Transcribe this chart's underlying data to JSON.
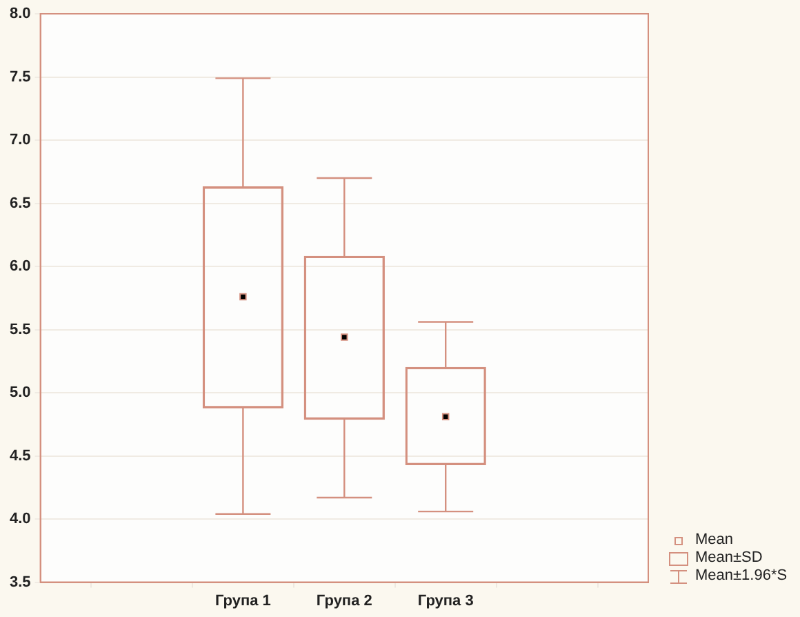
{
  "chart_data": {
    "type": "box",
    "categories": [
      null,
      "Група 1",
      "Група 2",
      "Група 3",
      null
    ],
    "ylim": [
      3.5,
      8
    ],
    "yticks": [
      {
        "value": 3.5,
        "label": "3.5"
      },
      {
        "value": 4,
        "label": "4.0"
      },
      {
        "value": 4.5,
        "label": "4.5"
      },
      {
        "value": 5,
        "label": "5.0"
      },
      {
        "value": 5.5,
        "label": "5.5"
      },
      {
        "value": 6,
        "label": "6.0"
      },
      {
        "value": 6.5,
        "label": "6.5"
      },
      {
        "value": 7,
        "label": "7.0"
      },
      {
        "value": 7.5,
        "label": "7.5"
      },
      {
        "value": 8,
        "label": "8.0"
      }
    ],
    "grid": "y",
    "marker": "square",
    "series": [
      {
        "color": "#d4907f",
        "boxes": [
          null,
          {
            "low": 4.04,
            "q1": 4.88,
            "q3": 6.63,
            "high": 7.49,
            "mean": 5.76
          },
          {
            "low": 4.17,
            "q1": 4.79,
            "q3": 6.08,
            "high": 6.7,
            "mean": 5.44
          },
          {
            "low": 4.06,
            "q1": 4.43,
            "q3": 5.2,
            "high": 5.56,
            "mean": 4.81
          },
          null
        ]
      }
    ],
    "annotations": [
      "Mean",
      "Mean±SD",
      "Mean±1.96*S"
    ]
  }
}
